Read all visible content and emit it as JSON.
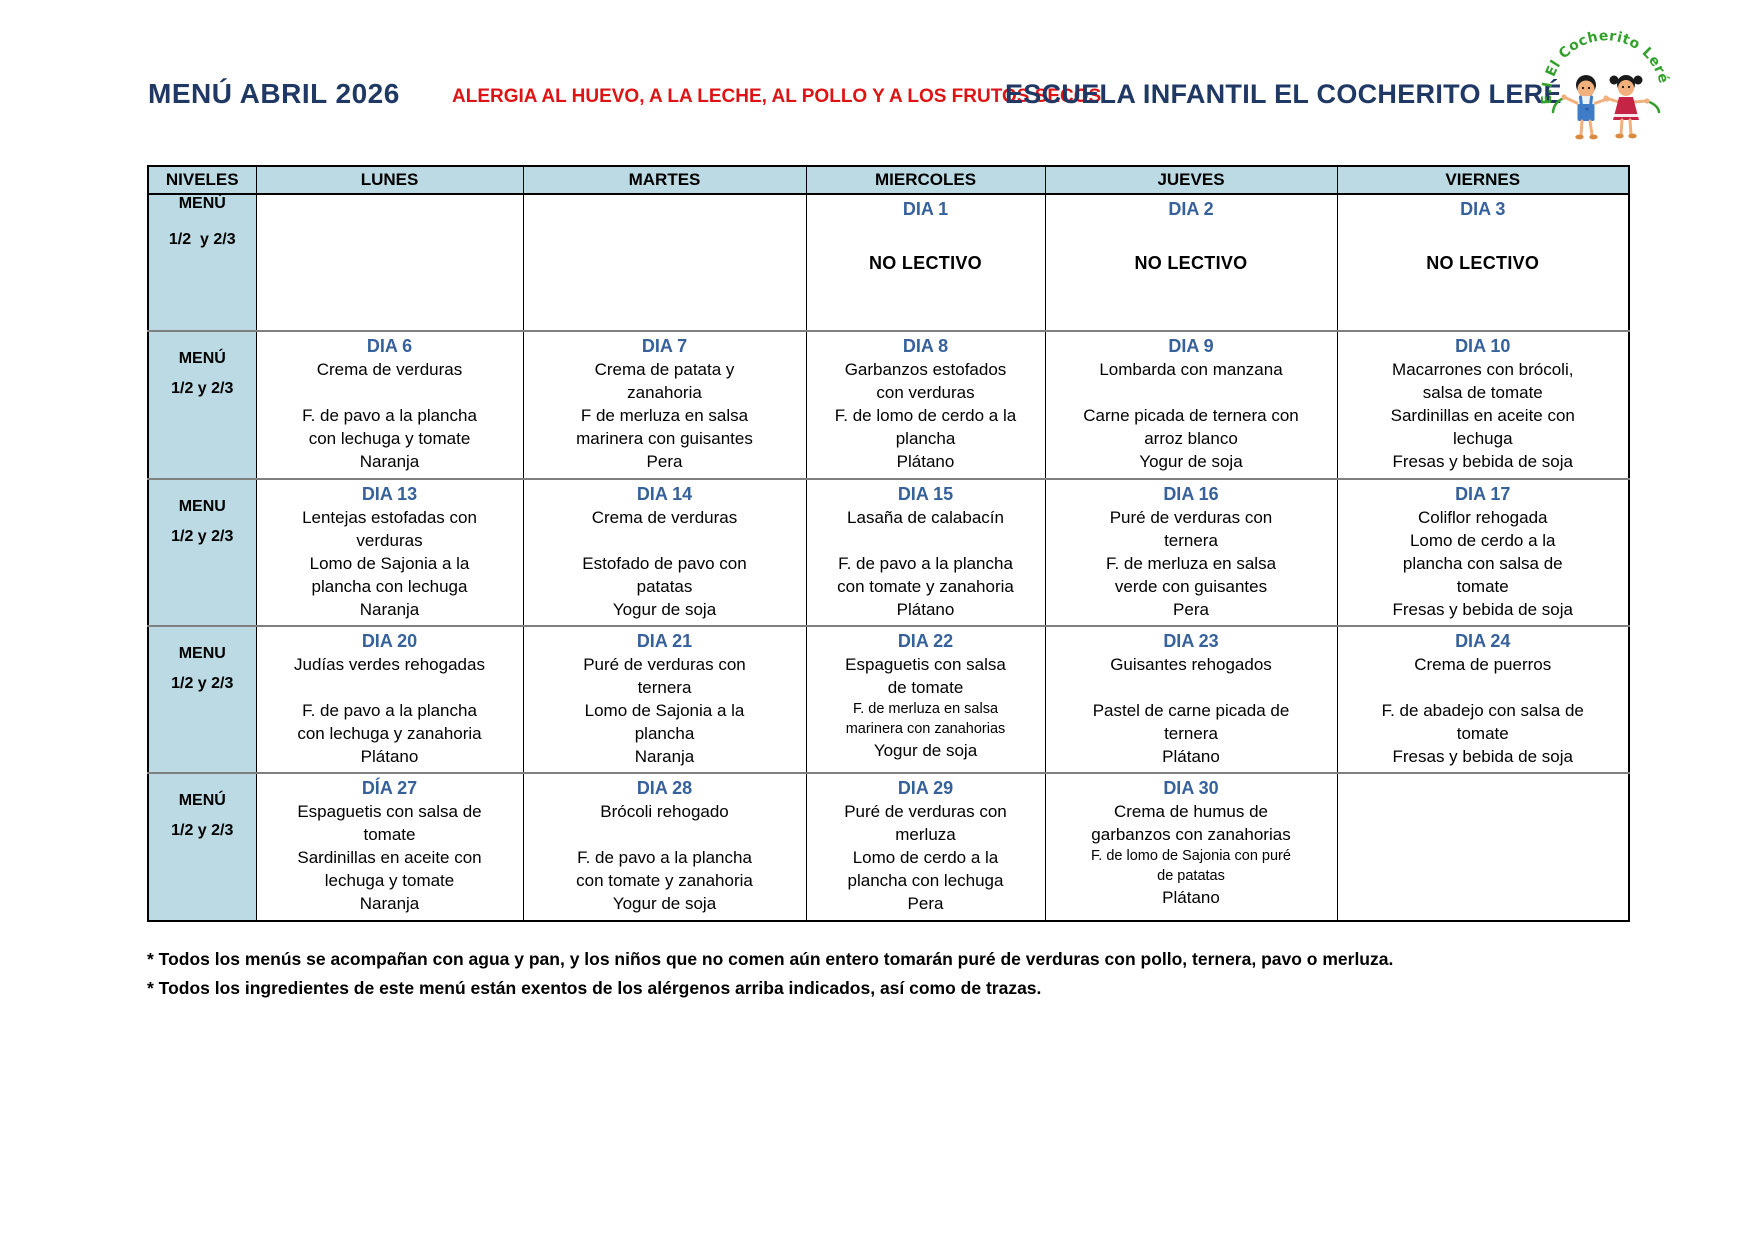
{
  "header": {
    "title": "MENÚ ABRIL 2026",
    "allergy": "ALERGIA AL HUEVO, A LA LECHE, AL POLLO Y A LOS FRUTOS SECOS",
    "school": "ESCUELA INFANTIL EL COCHERITO LERÉ",
    "logo_text": "E.I El Cocherito Leré"
  },
  "table": {
    "columns": [
      "NIVELES",
      "LUNES",
      "MARTES",
      "MIERCOLES",
      "JUEVES",
      "VIERNES"
    ],
    "rows": [
      {
        "level": {
          "name": "MENÚ",
          "group": "1/2  y 2/3"
        },
        "cells": [
          {},
          {},
          {
            "day": "DIA 1",
            "lines": [
              {
                "t": ""
              },
              {
                "t": "NO LECTIVO",
                "s": "nolect"
              }
            ]
          },
          {
            "day": "DIA 2",
            "lines": [
              {
                "t": ""
              },
              {
                "t": "NO LECTIVO",
                "s": "nolect"
              }
            ]
          },
          {
            "day": "DIA 3",
            "lines": [
              {
                "t": ""
              },
              {
                "t": "NO LECTIVO",
                "s": "nolect"
              }
            ]
          }
        ]
      },
      {
        "level": {
          "name": "MENÚ",
          "group": "1/2 y 2/3"
        },
        "cells": [
          {
            "day": "DIA 6",
            "lines": [
              {
                "t": "Crema de verduras"
              },
              {
                "t": ""
              },
              {
                "t": "F. de pavo a la plancha"
              },
              {
                "t": "con lechuga y tomate"
              },
              {
                "t": "Naranja"
              }
            ]
          },
          {
            "day": "DIA 7",
            "lines": [
              {
                "t": "Crema de patata y"
              },
              {
                "t": "zanahoria"
              },
              {
                "t": "F de merluza en salsa"
              },
              {
                "t": "marinera con guisantes"
              },
              {
                "t": "Pera"
              }
            ]
          },
          {
            "day": "DIA 8",
            "lines": [
              {
                "t": "Garbanzos estofados"
              },
              {
                "t": "con verduras"
              },
              {
                "t": "F. de lomo de cerdo a la"
              },
              {
                "t": "plancha"
              },
              {
                "t": "Plátano"
              }
            ]
          },
          {
            "day": "DIA 9",
            "lines": [
              {
                "t": "Lombarda con manzana"
              },
              {
                "t": ""
              },
              {
                "t": "Carne picada de ternera con"
              },
              {
                "t": "arroz blanco"
              },
              {
                "t": "Yogur de soja"
              }
            ]
          },
          {
            "day": "DIA 10",
            "lines": [
              {
                "t": "Macarrones con brócoli,"
              },
              {
                "t": "salsa de tomate"
              },
              {
                "t": "Sardinillas en aceite con"
              },
              {
                "t": "lechuga"
              },
              {
                "t": "Fresas y bebida de soja"
              }
            ]
          }
        ]
      },
      {
        "level": {
          "name": "MENU",
          "group": "1/2 y 2/3"
        },
        "cells": [
          {
            "day": "DIA 13",
            "lines": [
              {
                "t": "Lentejas estofadas con"
              },
              {
                "t": "verduras"
              },
              {
                "t": "Lomo de Sajonia a la"
              },
              {
                "t": "plancha con lechuga"
              },
              {
                "t": "Naranja"
              }
            ]
          },
          {
            "day": "DIA 14",
            "lines": [
              {
                "t": "Crema de verduras"
              },
              {
                "t": ""
              },
              {
                "t": "Estofado de pavo con"
              },
              {
                "t": "patatas"
              },
              {
                "t": "Yogur de soja"
              }
            ]
          },
          {
            "day": "DIA 15",
            "lines": [
              {
                "t": "Lasaña de calabacín"
              },
              {
                "t": ""
              },
              {
                "t": "F. de pavo a la plancha"
              },
              {
                "t": "con tomate y zanahoria"
              },
              {
                "t": "Plátano"
              }
            ]
          },
          {
            "day": "DIA 16",
            "lines": [
              {
                "t": "Puré de verduras con"
              },
              {
                "t": "ternera"
              },
              {
                "t": "F. de merluza en salsa"
              },
              {
                "t": "verde con guisantes"
              },
              {
                "t": "Pera"
              }
            ]
          },
          {
            "day": "DIA 17",
            "lines": [
              {
                "t": "Coliflor rehogada"
              },
              {
                "t": "Lomo de cerdo a la"
              },
              {
                "t": "plancha con salsa de"
              },
              {
                "t": "tomate"
              },
              {
                "t": "Fresas y bebida de soja"
              }
            ]
          }
        ]
      },
      {
        "level": {
          "name": "MENU",
          "group": "1/2 y 2/3"
        },
        "cells": [
          {
            "day": "DIA 20",
            "lines": [
              {
                "t": "Judías verdes rehogadas"
              },
              {
                "t": ""
              },
              {
                "t": "F. de pavo a la plancha"
              },
              {
                "t": "con lechuga y zanahoria"
              },
              {
                "t": "Plátano"
              }
            ]
          },
          {
            "day": "DIA 21",
            "lines": [
              {
                "t": "Puré de verduras con"
              },
              {
                "t": "ternera"
              },
              {
                "t": "Lomo de Sajonia a la"
              },
              {
                "t": "plancha"
              },
              {
                "t": "Naranja"
              }
            ]
          },
          {
            "day": "DIA 22",
            "lines": [
              {
                "t": "Espaguetis con salsa"
              },
              {
                "t": "de tomate"
              },
              {
                "t": "F. de merluza en salsa",
                "s": "small"
              },
              {
                "t": "marinera con zanahorias",
                "s": "small"
              },
              {
                "t": "Yogur de soja"
              }
            ]
          },
          {
            "day": "DIA 23",
            "lines": [
              {
                "t": "Guisantes rehogados"
              },
              {
                "t": ""
              },
              {
                "t": "Pastel de carne picada de"
              },
              {
                "t": "ternera"
              },
              {
                "t": "Plátano"
              }
            ]
          },
          {
            "day": "DIA 24",
            "lines": [
              {
                "t": "Crema de puerros"
              },
              {
                "t": ""
              },
              {
                "t": "F. de abadejo con salsa de"
              },
              {
                "t": "tomate"
              },
              {
                "t": "Fresas y bebida de soja"
              }
            ]
          }
        ]
      },
      {
        "level": {
          "name": "MENÚ",
          "group": "1/2 y 2/3"
        },
        "cells": [
          {
            "day": "DÍA 27",
            "lines": [
              {
                "t": "Espaguetis con salsa de"
              },
              {
                "t": "tomate"
              },
              {
                "t": "Sardinillas en aceite con"
              },
              {
                "t": "lechuga y tomate"
              },
              {
                "t": "Naranja"
              }
            ]
          },
          {
            "day": "DIA 28",
            "lines": [
              {
                "t": "Brócoli rehogado"
              },
              {
                "t": ""
              },
              {
                "t": "F. de pavo a la plancha"
              },
              {
                "t": "con tomate y zanahoria"
              },
              {
                "t": "Yogur de soja"
              }
            ]
          },
          {
            "day": "DIA 29",
            "lines": [
              {
                "t": "Puré de verduras con"
              },
              {
                "t": "merluza"
              },
              {
                "t": "Lomo de cerdo a la"
              },
              {
                "t": "plancha con lechuga"
              },
              {
                "t": "Pera"
              }
            ]
          },
          {
            "day": "DIA 30",
            "lines": [
              {
                "t": "Crema de humus de"
              },
              {
                "t": "garbanzos con zanahorias"
              },
              {
                "t": "F. de lomo de Sajonia con puré",
                "s": "small"
              },
              {
                "t": "de patatas",
                "s": "small"
              },
              {
                "t": "Plátano"
              }
            ]
          },
          {}
        ]
      }
    ]
  },
  "notes": [
    "* Todos los menús se acompañan con agua y pan, y los niños que no comen aún entero tomarán puré de verduras con pollo, ternera, pavo o merluza.",
    "* Todos los ingredientes de este menú están exentos de los alérgenos arriba indicados, así como de trazas."
  ],
  "colors": {
    "title_navy": "#1F3864",
    "alert_red": "#DE1414",
    "day_blue": "#36619B",
    "header_bg": "#BCDAE4",
    "row_divider": "#808080",
    "logo_green": "#33A02C"
  }
}
